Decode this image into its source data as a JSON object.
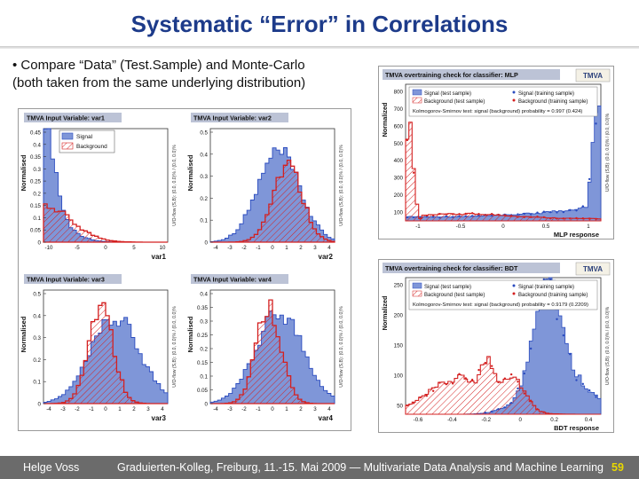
{
  "slide": {
    "title": "Systematic “Error” in Correlations",
    "bullet_line1": "• Compare “Data” (Test.Sample)  and Monte-Carlo",
    "bullet_line2": "(both taken from the same underlying distribution)"
  },
  "footer": {
    "author": "Helge Voss",
    "event": "Graduierten-Kolleg, Freiburg,  11.-15. Mai 2009  — Multivariate Data Analysis and Machine Learning",
    "page": "59"
  },
  "colors": {
    "title": "#1d3b8a",
    "signal_fill": "#7f96d8",
    "signal_line": "#2a4bbf",
    "background_line": "#d42020",
    "panel_header": "#bcc3d6",
    "footer_bg": "#6b6b6b",
    "page_number": "#e8d800"
  },
  "var_plots": [
    {
      "header": "TMVA Input Variable: var1",
      "xlabel": "var1",
      "ylabel": "Normalised",
      "yticks": [
        "0.45",
        "0.4",
        "0.35",
        "0.3",
        "0.25",
        "0.2",
        "0.15",
        "0.1",
        "0.05",
        "0"
      ],
      "xticks": [
        "-10",
        "-5",
        "0",
        "5",
        "10"
      ],
      "overflow_note": "U/O-flow (S,B): (0.0, 0.0)% / (0.0, 0.0)%",
      "legend": [
        "Signal",
        "Background"
      ]
    },
    {
      "header": "TMVA Input Variable: var2",
      "xlabel": "var2",
      "ylabel": "Normalised",
      "yticks": [
        "0.5",
        "0.4",
        "0.3",
        "0.2",
        "0.1",
        "0"
      ],
      "xticks": [
        "-4",
        "-3",
        "-2",
        "-1",
        "0",
        "1",
        "2",
        "3",
        "4"
      ],
      "overflow_note": "U/O-flow (S,B): (0.0, 0.0)% / (0.0, 0.0)%"
    },
    {
      "header": "TMVA Input Variable: var3",
      "xlabel": "var3",
      "ylabel": "Normalised",
      "yticks": [
        "0.5",
        "0.4",
        "0.3",
        "0.2",
        "0.1",
        "0"
      ],
      "xticks": [
        "-4",
        "-3",
        "-2",
        "-1",
        "0",
        "1",
        "2",
        "3",
        "4"
      ],
      "overflow_note": "U/O-flow (S,B): (0.0, 0.0)% / (0.0, 0.0)%"
    },
    {
      "header": "TMVA Input Variable: var4",
      "xlabel": "var4",
      "ylabel": "Normalised",
      "yticks": [
        "0.4",
        "0.35",
        "0.3",
        "0.25",
        "0.2",
        "0.15",
        "0.1",
        "0.05",
        "0"
      ],
      "xticks": [
        "-4",
        "-3",
        "-2",
        "-1",
        "0",
        "1",
        "2",
        "3",
        "4"
      ],
      "overflow_note": "U/O-flow (S,B): (0.0, 0.0)% / (0.0, 0.0)%"
    }
  ],
  "overtrain_plots": [
    {
      "header": "TMVA overtraining check for classifier: MLP",
      "logo": "TMVA",
      "xlabel": "MLP response",
      "ylabel": "Normalized",
      "yticks": [
        "800",
        "700",
        "600",
        "500",
        "400",
        "300",
        "200",
        "100"
      ],
      "xticks": [
        "-1",
        "-0.5",
        "0",
        "0.5",
        "1"
      ],
      "legend": [
        "Signal (test sample)",
        "Background (test sample)",
        "Signal (training sample)",
        "Background (training sample)"
      ],
      "ks_text": "Kolmogorov-Smirnov test: signal (background) probability = 0.997 (0.424)",
      "overflow_note": "U/O-flow (S,B): (0.0, 0.0)% / (0.0, 0.0)%"
    },
    {
      "header": "TMVA overtraining check for classifier: BDT",
      "logo": "TMVA",
      "xlabel": "BDT response",
      "ylabel": "Normalized",
      "yticks": [
        "250",
        "200",
        "150",
        "100",
        "50"
      ],
      "xticks": [
        "-0.6",
        "-0.4",
        "-0.2",
        "0",
        "0.2",
        "0.4"
      ],
      "legend": [
        "Signal (test sample)",
        "Background (test sample)",
        "Signal (training sample)",
        "Background (training sample)"
      ],
      "ks_text": "Kolmogorov-Smirnov test: signal (background) probability = 0.9179 (0.2209)",
      "overflow_note": "U/O-flow (S,B): (0.0, 0.0)% / (0.0, 0.0)%"
    }
  ]
}
